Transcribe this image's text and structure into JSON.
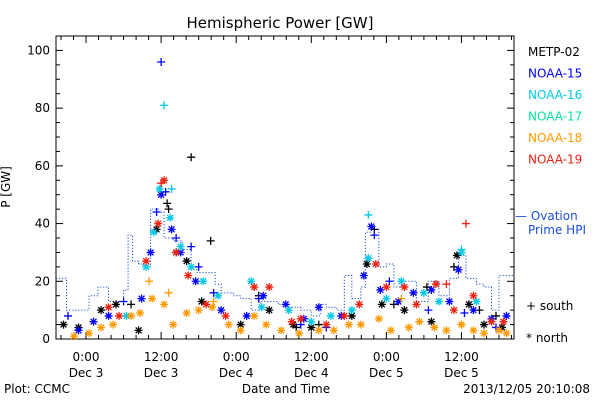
{
  "chart_data": {
    "type": "scatter",
    "title": "Hemispheric Power [GW]",
    "xlabel": "Date and Time",
    "ylabel": "P [GW]",
    "ylim": [
      0,
      105
    ],
    "xlim": [
      -0.2,
      2.85
    ],
    "x_unit": "days from 2013-12-03 00:00 UT",
    "yticks": [
      0,
      20,
      40,
      60,
      80,
      100
    ],
    "xticks": [
      {
        "x": 0.0,
        "time": "0:00",
        "date": "Dec 3"
      },
      {
        "x": 0.5,
        "time": "12:00",
        "date": "Dec 3"
      },
      {
        "x": 1.0,
        "time": "0:00",
        "date": "Dec 4"
      },
      {
        "x": 1.5,
        "time": "12:00",
        "date": "Dec 4"
      },
      {
        "x": 2.0,
        "time": "0:00",
        "date": "Dec 5"
      },
      {
        "x": 2.5,
        "time": "12:00",
        "date": "Dec 5"
      }
    ],
    "markers_legend": {
      "south": "+ south",
      "north": "* north"
    },
    "grid": false,
    "series": [
      {
        "name": "METP-02",
        "color": "#000000",
        "south": [
          [
            0.54,
            47
          ],
          [
            0.7,
            63
          ],
          [
            0.83,
            34
          ],
          [
            0.55,
            45
          ],
          [
            1.92,
            38
          ],
          [
            2.05,
            12
          ],
          [
            2.27,
            18
          ],
          [
            2.45,
            25
          ],
          [
            2.62,
            10
          ],
          [
            0.3,
            12
          ],
          [
            1.15,
            15
          ],
          [
            1.55,
            5
          ],
          [
            1.4,
            4
          ],
          [
            2.73,
            8
          ]
        ],
        "north": [
          [
            -0.15,
            5
          ],
          [
            -0.05,
            4
          ],
          [
            0.1,
            10
          ],
          [
            0.2,
            12
          ],
          [
            0.47,
            38
          ],
          [
            0.6,
            30
          ],
          [
            0.67,
            27
          ],
          [
            0.77,
            13
          ],
          [
            1.03,
            5
          ],
          [
            1.22,
            10
          ],
          [
            1.38,
            5
          ],
          [
            1.5,
            4
          ],
          [
            1.77,
            8
          ],
          [
            1.87,
            26
          ],
          [
            1.97,
            12
          ],
          [
            2.12,
            10
          ],
          [
            2.3,
            6
          ],
          [
            2.47,
            29
          ],
          [
            2.55,
            12
          ],
          [
            2.65,
            5
          ],
          [
            2.77,
            4
          ],
          [
            0.35,
            3
          ]
        ]
      },
      {
        "name": "NOAA-15",
        "color": "#0000ff",
        "south": [
          [
            0.5,
            96
          ],
          [
            0.53,
            51
          ],
          [
            0.47,
            44
          ],
          [
            0.6,
            35
          ],
          [
            0.7,
            32
          ],
          [
            0.75,
            25
          ],
          [
            0.85,
            16
          ],
          [
            1.15,
            14
          ],
          [
            1.43,
            5
          ],
          [
            1.6,
            4
          ],
          [
            1.92,
            36
          ],
          [
            2.02,
            20
          ],
          [
            2.28,
            10
          ],
          [
            2.52,
            9
          ],
          [
            2.73,
            4
          ],
          [
            -0.12,
            8
          ],
          [
            0.25,
            13
          ]
        ],
        "north": [
          [
            -0.05,
            3
          ],
          [
            0.05,
            6
          ],
          [
            0.15,
            8
          ],
          [
            0.37,
            14
          ],
          [
            0.43,
            30
          ],
          [
            0.5,
            50
          ],
          [
            0.57,
            38
          ],
          [
            0.63,
            30
          ],
          [
            0.73,
            20
          ],
          [
            0.9,
            10
          ],
          [
            1.07,
            8
          ],
          [
            1.18,
            15
          ],
          [
            1.33,
            12
          ],
          [
            1.45,
            7
          ],
          [
            1.55,
            11
          ],
          [
            1.7,
            8
          ],
          [
            1.85,
            22
          ],
          [
            1.9,
            39
          ],
          [
            1.96,
            17
          ],
          [
            2.08,
            13
          ],
          [
            2.18,
            16
          ],
          [
            2.3,
            17
          ],
          [
            2.42,
            13
          ],
          [
            2.48,
            24
          ],
          [
            2.58,
            10
          ],
          [
            2.7,
            7
          ],
          [
            2.8,
            8
          ]
        ]
      },
      {
        "name": "NOAA-16",
        "color": "#00c8e6",
        "south": [
          [
            0.52,
            81
          ],
          [
            0.57,
            52
          ],
          [
            1.88,
            43
          ],
          [
            2.5,
            31
          ]
        ],
        "north": [
          [
            0.27,
            8
          ],
          [
            0.4,
            25
          ],
          [
            0.45,
            37
          ],
          [
            0.49,
            52
          ],
          [
            0.56,
            42
          ],
          [
            0.63,
            32
          ],
          [
            0.7,
            25
          ],
          [
            0.78,
            20
          ],
          [
            0.88,
            15
          ],
          [
            1.1,
            20
          ],
          [
            1.17,
            11
          ],
          [
            1.35,
            10
          ],
          [
            1.5,
            6
          ],
          [
            1.63,
            8
          ],
          [
            1.77,
            10
          ],
          [
            1.88,
            28
          ],
          [
            2.0,
            14
          ],
          [
            2.1,
            20
          ],
          [
            2.25,
            16
          ],
          [
            2.35,
            13
          ],
          [
            2.5,
            30
          ],
          [
            2.6,
            13
          ],
          [
            2.7,
            6
          ]
        ]
      },
      {
        "name": "NOAA-17",
        "color": "#00e699",
        "south": [],
        "north": []
      },
      {
        "name": "NOAA-18",
        "color": "#ff9900",
        "south": [
          [
            0.42,
            20
          ],
          [
            0.55,
            16
          ],
          [
            0.85,
            13
          ],
          [
            2.1,
            14
          ],
          [
            2.5,
            5
          ]
        ],
        "north": [
          [
            -0.08,
            1
          ],
          [
            0.02,
            2
          ],
          [
            0.1,
            4
          ],
          [
            0.18,
            5
          ],
          [
            0.3,
            8
          ],
          [
            0.36,
            9
          ],
          [
            0.44,
            14
          ],
          [
            0.52,
            12
          ],
          [
            0.58,
            5
          ],
          [
            0.67,
            9
          ],
          [
            0.75,
            10
          ],
          [
            0.84,
            11
          ],
          [
            0.95,
            5
          ],
          [
            1.03,
            3
          ],
          [
            1.12,
            8
          ],
          [
            1.2,
            5
          ],
          [
            1.3,
            3
          ],
          [
            1.42,
            2
          ],
          [
            1.55,
            3
          ],
          [
            1.65,
            3
          ],
          [
            1.75,
            5
          ],
          [
            1.83,
            5
          ],
          [
            1.95,
            7
          ],
          [
            2.03,
            3
          ],
          [
            2.15,
            4
          ],
          [
            2.22,
            6
          ],
          [
            2.32,
            4
          ],
          [
            2.4,
            3
          ],
          [
            2.5,
            5
          ],
          [
            2.58,
            3
          ],
          [
            2.65,
            2
          ],
          [
            2.75,
            3
          ],
          [
            2.8,
            2
          ]
        ]
      },
      {
        "name": "NOAA-19",
        "color": "#ee2211",
        "south": [
          [
            0.5,
            54
          ],
          [
            2.53,
            40
          ],
          [
            2.4,
            19
          ]
        ],
        "north": [
          [
            0.15,
            11
          ],
          [
            0.22,
            8
          ],
          [
            0.4,
            27
          ],
          [
            0.48,
            40
          ],
          [
            0.52,
            55
          ],
          [
            0.6,
            30
          ],
          [
            0.68,
            22
          ],
          [
            0.8,
            12
          ],
          [
            0.93,
            8
          ],
          [
            1.12,
            18
          ],
          [
            1.22,
            18
          ],
          [
            1.37,
            6
          ],
          [
            1.43,
            7
          ],
          [
            1.6,
            5
          ],
          [
            1.72,
            8
          ],
          [
            1.82,
            12
          ],
          [
            1.93,
            26
          ],
          [
            2.0,
            18
          ],
          [
            2.12,
            18
          ],
          [
            2.2,
            12
          ],
          [
            2.33,
            19
          ],
          [
            2.45,
            10
          ],
          [
            2.58,
            15
          ],
          [
            2.7,
            6
          ],
          [
            2.78,
            6
          ]
        ]
      }
    ],
    "ovation": {
      "name": "Ovation Prime HPI",
      "legend": "— Ovation",
      "legend_line2": "Prime HPI",
      "color": "#1a4fd6",
      "steps": [
        [
          -0.2,
          21
        ],
        [
          -0.13,
          10
        ],
        [
          0.02,
          15
        ],
        [
          0.08,
          18
        ],
        [
          0.15,
          13
        ],
        [
          0.25,
          17
        ],
        [
          0.28,
          36
        ],
        [
          0.31,
          27
        ],
        [
          0.35,
          26
        ],
        [
          0.38,
          25
        ],
        [
          0.43,
          45
        ],
        [
          0.48,
          44
        ],
        [
          0.52,
          35
        ],
        [
          0.58,
          34
        ],
        [
          0.64,
          31
        ],
        [
          0.7,
          24
        ],
        [
          0.74,
          23
        ],
        [
          0.8,
          23
        ],
        [
          0.86,
          19
        ],
        [
          0.9,
          16
        ],
        [
          0.98,
          15
        ],
        [
          1.03,
          14
        ],
        [
          1.1,
          10
        ],
        [
          1.16,
          13
        ],
        [
          1.2,
          13
        ],
        [
          1.28,
          12
        ],
        [
          1.35,
          11
        ],
        [
          1.43,
          10
        ],
        [
          1.5,
          8
        ],
        [
          1.56,
          12
        ],
        [
          1.6,
          11
        ],
        [
          1.67,
          10
        ],
        [
          1.72,
          22
        ],
        [
          1.77,
          14
        ],
        [
          1.83,
          18
        ],
        [
          1.86,
          37
        ],
        [
          1.9,
          38
        ],
        [
          1.95,
          25
        ],
        [
          2.0,
          26
        ],
        [
          2.05,
          18
        ],
        [
          2.1,
          20
        ],
        [
          2.2,
          13
        ],
        [
          2.28,
          20
        ],
        [
          2.35,
          15
        ],
        [
          2.42,
          21
        ],
        [
          2.48,
          29
        ],
        [
          2.53,
          21
        ],
        [
          2.6,
          19
        ],
        [
          2.65,
          18
        ],
        [
          2.7,
          10
        ],
        [
          2.75,
          22
        ],
        [
          2.85,
          22
        ]
      ]
    }
  },
  "footer": {
    "left": "Plot: CCMC",
    "right": "2013/12/05 20:10:08"
  }
}
